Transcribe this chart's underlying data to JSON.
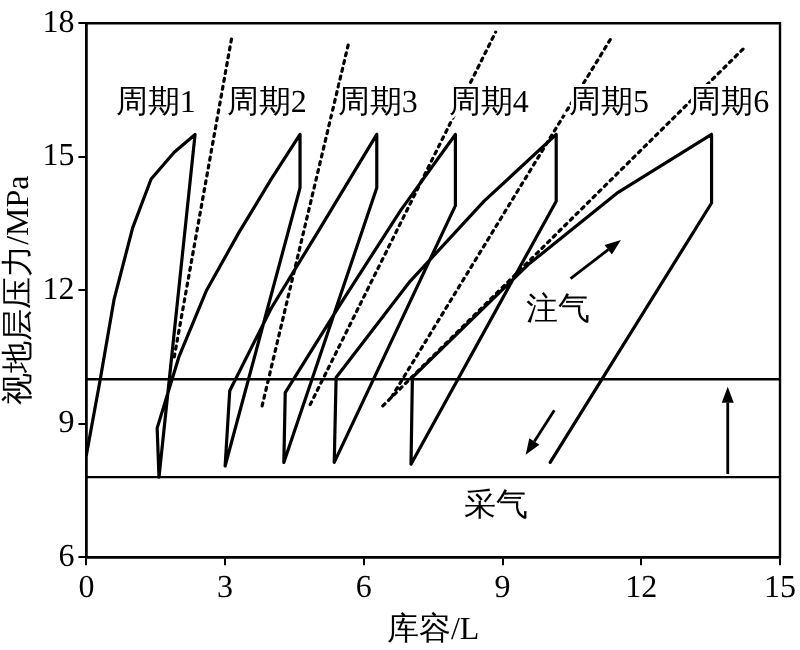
{
  "chart_data": {
    "type": "line",
    "xlabel": "库容/L",
    "ylabel": "视地层压力/MPa",
    "xlim": [
      0,
      15
    ],
    "ylim": [
      6,
      18
    ],
    "xticks": [
      0,
      3,
      6,
      9,
      12,
      15
    ],
    "yticks": [
      6,
      9,
      12,
      15,
      18
    ],
    "grid": false,
    "legend": false,
    "marker": "none",
    "series": [
      {
        "color": "#000000",
        "line_style": "solid",
        "x": [
          0,
          0.3,
          0.6,
          1.0,
          1.4,
          1.9,
          2.35,
          1.57,
          1.53,
          2.0,
          2.6,
          3.3,
          4.0,
          4.62,
          4.62,
          3.0,
          3.1,
          4.0,
          5.0,
          6.28,
          6.28,
          4.27,
          4.3,
          5.5,
          6.8,
          7.98,
          7.98,
          5.36,
          5.4,
          7.0,
          8.6,
          10.16,
          10.16,
          7.02,
          7.05,
          9.55,
          11.5,
          13.52,
          13.52,
          10.03
        ],
        "values": [
          8.3,
          10.0,
          11.8,
          13.4,
          14.5,
          15.1,
          15.5,
          7.8,
          8.9,
          10.5,
          12.0,
          13.3,
          14.5,
          15.5,
          14.3,
          8.05,
          9.74,
          11.6,
          13.3,
          15.5,
          14.3,
          8.13,
          9.7,
          11.7,
          13.8,
          15.5,
          13.9,
          8.13,
          10.04,
          12.2,
          14.0,
          15.5,
          14.0,
          8.09,
          10.04,
          12.57,
          14.2,
          15.5,
          13.96,
          8.13
        ]
      },
      {
        "color": "#000000",
        "line_style": "dotted",
        "x": [
          1.9,
          3.14
        ],
        "values": [
          10.5,
          17.66
        ]
      },
      {
        "color": "#000000",
        "line_style": "dotted",
        "x": [
          3.8,
          5.67
        ],
        "values": [
          9.4,
          17.55
        ]
      },
      {
        "color": "#000000",
        "line_style": "dotted",
        "x": [
          4.84,
          8.85
        ],
        "values": [
          9.43,
          17.8
        ]
      },
      {
        "color": "#000000",
        "line_style": "dotted",
        "x": [
          6.6,
          11.34
        ],
        "values": [
          9.6,
          17.65
        ]
      },
      {
        "color": "#000000",
        "line_style": "dotted",
        "x": [
          6.41,
          14.26
        ],
        "values": [
          9.4,
          17.48
        ]
      }
    ],
    "ref_lines": [
      {
        "axis": "y",
        "value": 10.0,
        "color": "#000000"
      },
      {
        "axis": "y",
        "value": 7.8,
        "color": "#000000"
      }
    ],
    "annotations": [
      "周期1",
      "周期2",
      "周期3",
      "周期4",
      "周期5",
      "周期6",
      "注气",
      "采气"
    ]
  }
}
